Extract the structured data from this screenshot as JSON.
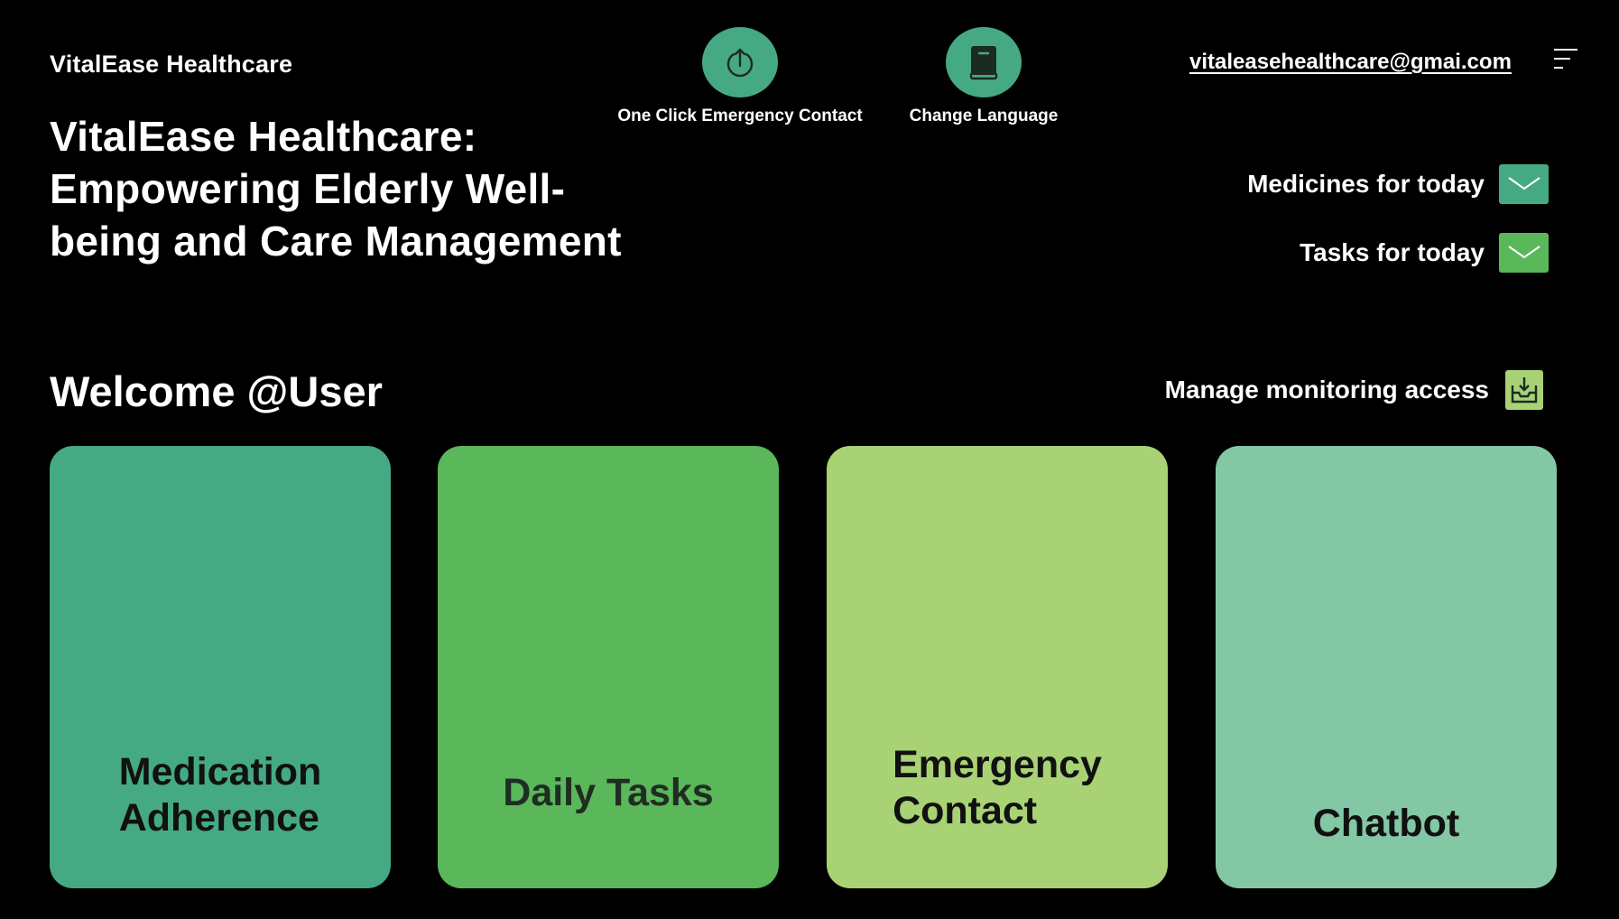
{
  "header": {
    "brand": "VitalEase Healthcare",
    "emergency_action": {
      "label": "One Click Emergency Contact",
      "icon": "upload-icon"
    },
    "language_action": {
      "label": "Change Language",
      "icon": "book-icon"
    },
    "email": "vitaleasehealthcare@gmai.com",
    "menu_icon": "menu-icon"
  },
  "hero": {
    "title": "VitalEase Healthcare: Empowering Elderly Well-being and Care Management"
  },
  "today": {
    "medicines_label": "Medicines for today",
    "tasks_label": "Tasks for today"
  },
  "welcome": "Welcome @User",
  "monitoring": {
    "label": "Manage monitoring access",
    "icon": "inbox-download-icon"
  },
  "cards": [
    {
      "label_line1": "Medication",
      "label_line2": "Adherence",
      "color": "#45aa84"
    },
    {
      "label": "Daily Tasks",
      "color": "#5ab75a"
    },
    {
      "label_line1": "Emergency",
      "label_line2": "Contact",
      "color": "#a8d274"
    },
    {
      "label": "Chatbot",
      "color": "#83c7a5"
    }
  ],
  "colors": {
    "background": "#000000",
    "accent_teal": "#45aa84",
    "accent_green": "#5ab75a",
    "accent_lime": "#a8d274",
    "accent_mint": "#83c7a5"
  }
}
